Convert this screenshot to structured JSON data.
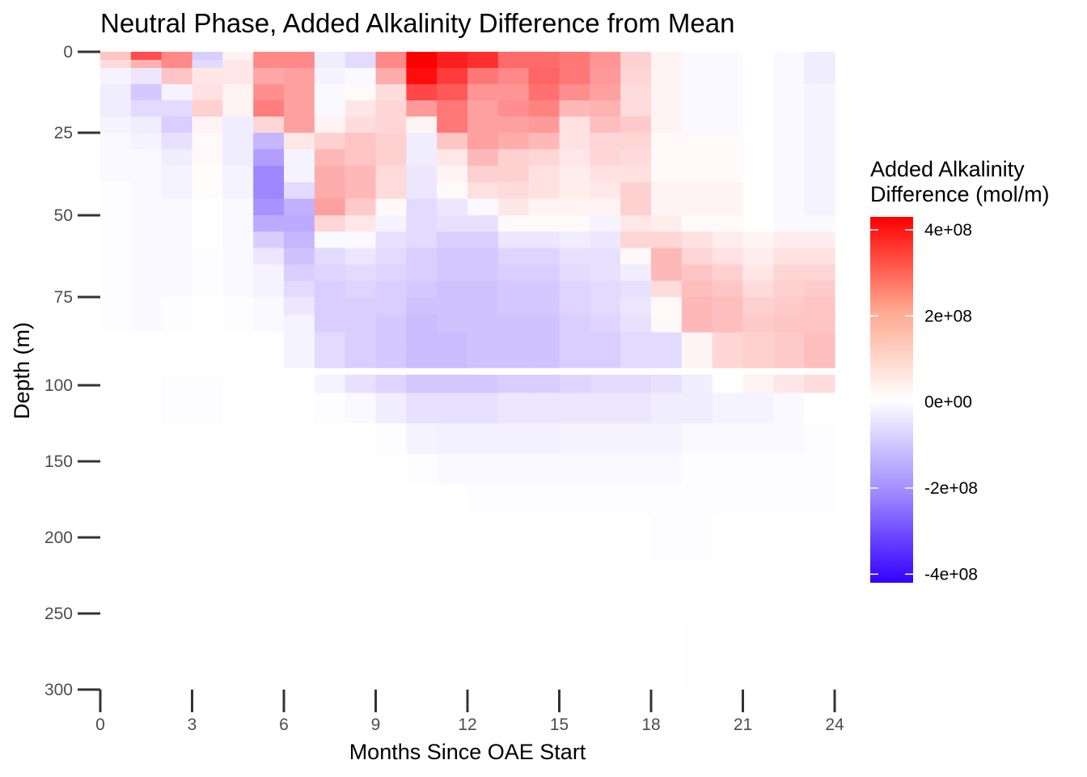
{
  "chart_data": {
    "type": "heatmap",
    "title": "Neutral Phase, Added Alkalinity Difference from Mean",
    "xlabel": "Months Since OAE Start",
    "ylabel": "Depth (m)",
    "x_ticks": [
      0,
      3,
      6,
      9,
      12,
      15,
      18,
      21,
      24
    ],
    "y_ticks": [
      0,
      25,
      50,
      75,
      100,
      150,
      200,
      250,
      300
    ],
    "xlim": [
      0,
      24
    ],
    "ylim": [
      300,
      0
    ],
    "grid": false,
    "legend_title": [
      "Added Alkalinity",
      "Difference (mol/m)"
    ],
    "legend_position": "right",
    "legend_ticks": [
      {
        "value": 400000000,
        "label": "4e+08"
      },
      {
        "value": 200000000,
        "label": "2e+08"
      },
      {
        "value": 0,
        "label": "0e+00"
      },
      {
        "value": -200000000,
        "label": "-2e+08"
      },
      {
        "value": -400000000,
        "label": "-4e+08"
      }
    ],
    "color_scale": {
      "low": "#3300ff",
      "mid": "#ffffff",
      "high": "#ff0000",
      "limits": [
        -420000000,
        430000000
      ]
    },
    "months": [
      0,
      1,
      2,
      3,
      4,
      5,
      6,
      7,
      8,
      9,
      10,
      11,
      12,
      13,
      14,
      15,
      16,
      17,
      18,
      19,
      20,
      21,
      22,
      23
    ],
    "depths": [
      {
        "top": 0,
        "bottom": 2.5
      },
      {
        "top": 2.5,
        "bottom": 5
      },
      {
        "top": 5,
        "bottom": 10
      },
      {
        "top": 10,
        "bottom": 15
      },
      {
        "top": 15,
        "bottom": 20
      },
      {
        "top": 20,
        "bottom": 25
      },
      {
        "top": 25,
        "bottom": 30
      },
      {
        "top": 30,
        "bottom": 35
      },
      {
        "top": 35,
        "bottom": 40
      },
      {
        "top": 40,
        "bottom": 45
      },
      {
        "top": 45,
        "bottom": 50
      },
      {
        "top": 50,
        "bottom": 55
      },
      {
        "top": 55,
        "bottom": 60
      },
      {
        "top": 60,
        "bottom": 65
      },
      {
        "top": 65,
        "bottom": 70
      },
      {
        "top": 70,
        "bottom": 75
      },
      {
        "top": 75,
        "bottom": 80
      },
      {
        "top": 80,
        "bottom": 85
      },
      {
        "top": 85,
        "bottom": 90
      },
      {
        "top": 90,
        "bottom": 95
      },
      {
        "top": 97,
        "bottom": 105
      },
      {
        "top": 105,
        "bottom": 125
      },
      {
        "top": 125,
        "bottom": 145
      },
      {
        "top": 145,
        "bottom": 165
      },
      {
        "top": 165,
        "bottom": 185
      },
      {
        "top": 185,
        "bottom": 215
      },
      {
        "top": 215,
        "bottom": 255
      },
      {
        "top": 255,
        "bottom": 300
      }
    ],
    "values_units": "1e6 mol/m",
    "values": [
      [
        100,
        300,
        200,
        -80,
        20,
        200,
        200,
        -30,
        -60,
        200,
        430,
        380,
        350,
        250,
        250,
        230,
        180,
        80,
        20,
        -10,
        -10,
        0,
        -10,
        -30
      ],
      [
        60,
        130,
        200,
        -60,
        40,
        200,
        200,
        -30,
        -60,
        200,
        430,
        380,
        350,
        250,
        250,
        230,
        180,
        80,
        20,
        -10,
        -10,
        0,
        -10,
        -30
      ],
      [
        -20,
        -40,
        100,
        40,
        40,
        150,
        160,
        -20,
        -10,
        140,
        410,
        330,
        230,
        200,
        260,
        230,
        170,
        70,
        20,
        -10,
        -10,
        0,
        -10,
        -30
      ],
      [
        -30,
        -90,
        -20,
        50,
        20,
        190,
        160,
        -10,
        10,
        60,
        310,
        280,
        180,
        180,
        240,
        190,
        160,
        60,
        20,
        -10,
        -10,
        0,
        -10,
        -20
      ],
      [
        -30,
        -60,
        -60,
        80,
        20,
        220,
        160,
        -10,
        40,
        70,
        170,
        230,
        160,
        190,
        210,
        120,
        130,
        60,
        20,
        -10,
        -10,
        0,
        -10,
        -20
      ],
      [
        -20,
        -30,
        -80,
        20,
        -30,
        70,
        160,
        20,
        60,
        70,
        20,
        230,
        160,
        160,
        170,
        50,
        110,
        90,
        20,
        -10,
        -10,
        0,
        -10,
        -20
      ],
      [
        -10,
        -20,
        -50,
        10,
        -30,
        -120,
        40,
        80,
        100,
        80,
        -30,
        100,
        160,
        140,
        120,
        50,
        70,
        70,
        10,
        10,
        10,
        0,
        -10,
        -20
      ],
      [
        -10,
        -10,
        -30,
        10,
        -30,
        -160,
        -20,
        120,
        100,
        80,
        -30,
        40,
        120,
        80,
        70,
        40,
        70,
        60,
        10,
        10,
        10,
        0,
        -10,
        -20
      ],
      [
        -10,
        -10,
        -20,
        5,
        -20,
        -200,
        -20,
        140,
        120,
        60,
        -40,
        20,
        80,
        80,
        50,
        30,
        50,
        50,
        10,
        10,
        10,
        0,
        -10,
        -20
      ],
      [
        -5,
        -10,
        -20,
        5,
        -20,
        -200,
        -60,
        140,
        120,
        60,
        -40,
        10,
        50,
        60,
        50,
        30,
        40,
        80,
        20,
        20,
        20,
        0,
        -10,
        -20
      ],
      [
        -5,
        -10,
        -10,
        0,
        -10,
        -180,
        -130,
        160,
        90,
        10,
        -60,
        -40,
        -10,
        40,
        20,
        20,
        20,
        80,
        20,
        20,
        20,
        0,
        -10,
        -20
      ],
      [
        -5,
        -10,
        -10,
        0,
        -10,
        -140,
        -140,
        70,
        40,
        -20,
        -60,
        -50,
        -50,
        10,
        10,
        10,
        -20,
        40,
        30,
        10,
        10,
        0,
        -10,
        -10
      ],
      [
        -5,
        -10,
        -10,
        0,
        -10,
        -80,
        -120,
        -10,
        -10,
        -50,
        -60,
        -80,
        -80,
        -40,
        -40,
        -30,
        -40,
        70,
        70,
        50,
        30,
        20,
        30,
        30
      ],
      [
        -5,
        -10,
        -10,
        -5,
        -10,
        -40,
        -100,
        -60,
        -40,
        -60,
        -80,
        -90,
        -90,
        -70,
        -70,
        -50,
        -50,
        10,
        120,
        70,
        50,
        30,
        50,
        50
      ],
      [
        -5,
        -10,
        -10,
        -5,
        -10,
        -20,
        -80,
        -70,
        -60,
        -70,
        -80,
        -90,
        -90,
        -80,
        -80,
        -60,
        -50,
        -30,
        120,
        100,
        80,
        40,
        70,
        70
      ],
      [
        -5,
        -10,
        -10,
        -5,
        -10,
        -20,
        -60,
        -80,
        -70,
        -80,
        -90,
        -100,
        -100,
        -90,
        -90,
        -70,
        -60,
        -50,
        60,
        110,
        100,
        60,
        80,
        90
      ],
      [
        -5,
        -10,
        -5,
        0,
        -5,
        -10,
        -40,
        -80,
        -80,
        -80,
        -100,
        -100,
        -100,
        -90,
        -90,
        -70,
        -60,
        -40,
        10,
        120,
        110,
        80,
        90,
        100
      ],
      [
        -5,
        -10,
        -5,
        0,
        -5,
        -10,
        -20,
        -80,
        -80,
        -90,
        -110,
        -100,
        -100,
        -100,
        -100,
        -80,
        -70,
        -50,
        10,
        120,
        110,
        90,
        100,
        100
      ],
      [
        0,
        0,
        0,
        0,
        0,
        0,
        -20,
        -60,
        -80,
        -90,
        -110,
        -110,
        -100,
        -100,
        -100,
        -80,
        -80,
        -60,
        -60,
        20,
        70,
        80,
        90,
        110
      ],
      [
        0,
        0,
        0,
        0,
        0,
        0,
        -20,
        -60,
        -80,
        -90,
        -110,
        -110,
        -100,
        -100,
        -100,
        -80,
        -80,
        -60,
        -60,
        20,
        70,
        80,
        90,
        110
      ],
      [
        0,
        0,
        -5,
        -5,
        0,
        0,
        0,
        -20,
        -50,
        -70,
        -90,
        -90,
        -90,
        -80,
        -80,
        -70,
        -60,
        -60,
        -50,
        -30,
        0,
        20,
        40,
        60
      ],
      [
        0,
        0,
        -5,
        -5,
        0,
        0,
        0,
        -5,
        -10,
        -30,
        -50,
        -50,
        -50,
        -40,
        -40,
        -40,
        -40,
        -40,
        -30,
        -30,
        -20,
        -20,
        -10,
        0
      ],
      [
        0,
        0,
        0,
        0,
        0,
        0,
        0,
        0,
        0,
        -5,
        -20,
        -25,
        -25,
        -25,
        -25,
        -20,
        -20,
        -20,
        -20,
        -10,
        -10,
        -10,
        -10,
        -5
      ],
      [
        0,
        0,
        0,
        0,
        0,
        0,
        0,
        0,
        0,
        0,
        -5,
        -10,
        -10,
        -10,
        -10,
        -10,
        -10,
        -10,
        -10,
        -5,
        -5,
        -5,
        -5,
        -5
      ],
      [
        0,
        0,
        0,
        0,
        0,
        0,
        0,
        0,
        0,
        0,
        0,
        0,
        -5,
        -5,
        -5,
        -5,
        -5,
        -5,
        -5,
        -5,
        -5,
        -5,
        -5,
        -5
      ],
      [
        0,
        0,
        0,
        0,
        0,
        0,
        0,
        0,
        0,
        0,
        0,
        0,
        0,
        0,
        0,
        0,
        0,
        0,
        -5,
        -5,
        0,
        0,
        0,
        0
      ],
      [
        0,
        0,
        0,
        0,
        0,
        0,
        0,
        0,
        0,
        0,
        0,
        0,
        0,
        0,
        0,
        0,
        0,
        0,
        0,
        -3,
        0,
        0,
        0,
        0
      ],
      [
        0,
        0,
        0,
        0,
        0,
        0,
        0,
        0,
        0,
        0,
        0,
        0,
        0,
        0,
        0,
        0,
        0,
        0,
        0,
        -2,
        0,
        0,
        0,
        0
      ]
    ]
  }
}
